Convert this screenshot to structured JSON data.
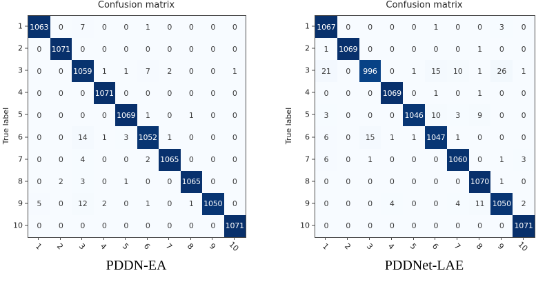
{
  "colors": {
    "cmap_low": "#f7fbff",
    "cmap_high": "#08306b",
    "cell_text_on_dark": "#ffffff",
    "cell_text_on_light": "#3a3a3a",
    "axis": "#4a4a4a"
  },
  "chart_data": [
    {
      "type": "heatmap",
      "title": "Confusion matrix",
      "xlabel": "",
      "ylabel": "True label",
      "caption": "PDDN-EA",
      "colormap": "Blues",
      "legend": "none",
      "grid": false,
      "vmin": 0,
      "vmax": 1071,
      "x_tick_labels": [
        "1",
        "2",
        "3",
        "4",
        "5",
        "6",
        "7",
        "8",
        "9",
        "10"
      ],
      "y_tick_labels": [
        "1",
        "2",
        "3",
        "4",
        "5",
        "6",
        "7",
        "8",
        "9",
        "10"
      ],
      "matrix": [
        [
          1063,
          0,
          7,
          0,
          0,
          1,
          0,
          0,
          0,
          0
        ],
        [
          0,
          1071,
          0,
          0,
          0,
          0,
          0,
          0,
          0,
          0
        ],
        [
          0,
          0,
          1059,
          1,
          1,
          7,
          2,
          0,
          0,
          1
        ],
        [
          0,
          0,
          0,
          1071,
          0,
          0,
          0,
          0,
          0,
          0
        ],
        [
          0,
          0,
          0,
          0,
          1069,
          1,
          0,
          1,
          0,
          0
        ],
        [
          0,
          0,
          14,
          1,
          3,
          1052,
          1,
          0,
          0,
          0
        ],
        [
          0,
          0,
          4,
          0,
          0,
          2,
          1065,
          0,
          0,
          0
        ],
        [
          0,
          2,
          3,
          0,
          1,
          0,
          0,
          1065,
          0,
          0
        ],
        [
          5,
          0,
          12,
          2,
          0,
          1,
          0,
          1,
          1050,
          0
        ],
        [
          0,
          0,
          0,
          0,
          0,
          0,
          0,
          0,
          0,
          1071
        ]
      ]
    },
    {
      "type": "heatmap",
      "title": "Confusion matrix",
      "xlabel": "",
      "ylabel": "True label",
      "caption": "PDDNet-LAE",
      "colormap": "Blues",
      "legend": "none",
      "grid": false,
      "vmin": 0,
      "vmax": 1071,
      "x_tick_labels": [
        "1",
        "2",
        "3",
        "4",
        "5",
        "6",
        "7",
        "8",
        "9",
        "10"
      ],
      "y_tick_labels": [
        "1",
        "2",
        "3",
        "4",
        "5",
        "6",
        "7",
        "8",
        "9",
        "10"
      ],
      "matrix": [
        [
          1067,
          0,
          0,
          0,
          0,
          1,
          0,
          0,
          3,
          0
        ],
        [
          1,
          1069,
          0,
          0,
          0,
          0,
          0,
          1,
          0,
          0
        ],
        [
          21,
          0,
          996,
          0,
          1,
          15,
          10,
          1,
          26,
          1
        ],
        [
          0,
          0,
          0,
          1069,
          0,
          1,
          0,
          1,
          0,
          0
        ],
        [
          3,
          0,
          0,
          0,
          1046,
          10,
          3,
          9,
          0,
          0
        ],
        [
          6,
          0,
          15,
          1,
          1,
          1047,
          1,
          0,
          0,
          0
        ],
        [
          6,
          0,
          1,
          0,
          0,
          0,
          1060,
          0,
          1,
          3
        ],
        [
          0,
          0,
          0,
          0,
          0,
          0,
          0,
          1070,
          1,
          0
        ],
        [
          0,
          0,
          0,
          4,
          0,
          0,
          4,
          11,
          1050,
          2
        ],
        [
          0,
          0,
          0,
          0,
          0,
          0,
          0,
          0,
          0,
          1071
        ]
      ]
    }
  ]
}
